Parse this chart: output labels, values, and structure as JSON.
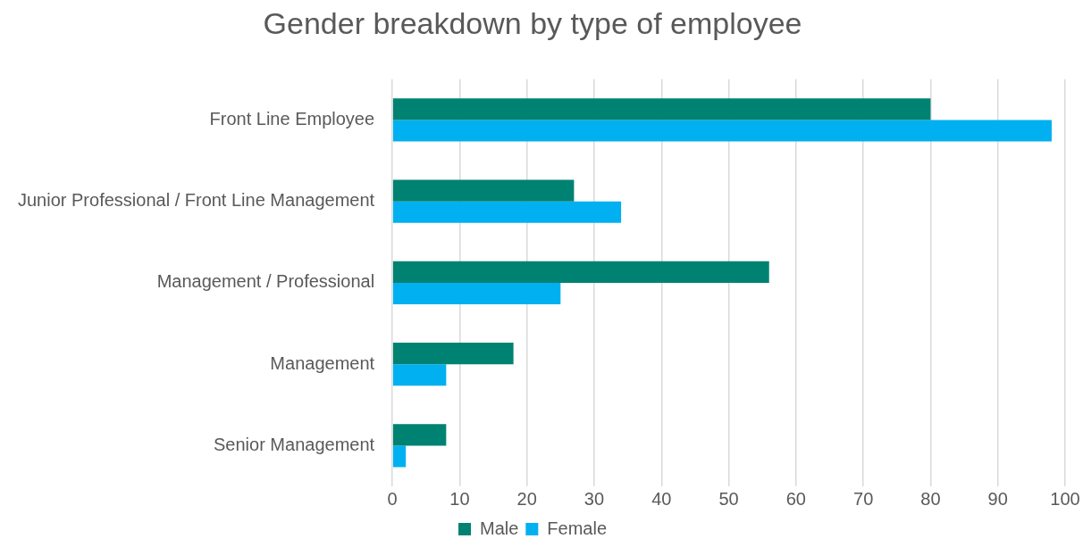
{
  "chart_data": {
    "type": "bar",
    "orientation": "horizontal",
    "title": "Gender breakdown by type of employee",
    "categories": [
      "Front Line Employee",
      "Junior Professional / Front Line Management",
      "Management / Professional",
      "Management",
      "Senior Management"
    ],
    "series": [
      {
        "name": "Male",
        "color": "#008272",
        "values": [
          80,
          27,
          56,
          18,
          8
        ]
      },
      {
        "name": "Female",
        "color": "#00b0f0",
        "values": [
          98,
          34,
          25,
          8,
          2
        ]
      }
    ],
    "xlim": [
      0,
      100
    ],
    "xticks": [
      0,
      10,
      20,
      30,
      40,
      50,
      60,
      70,
      80,
      90,
      100
    ],
    "grid": "x",
    "legend": "bottom"
  }
}
